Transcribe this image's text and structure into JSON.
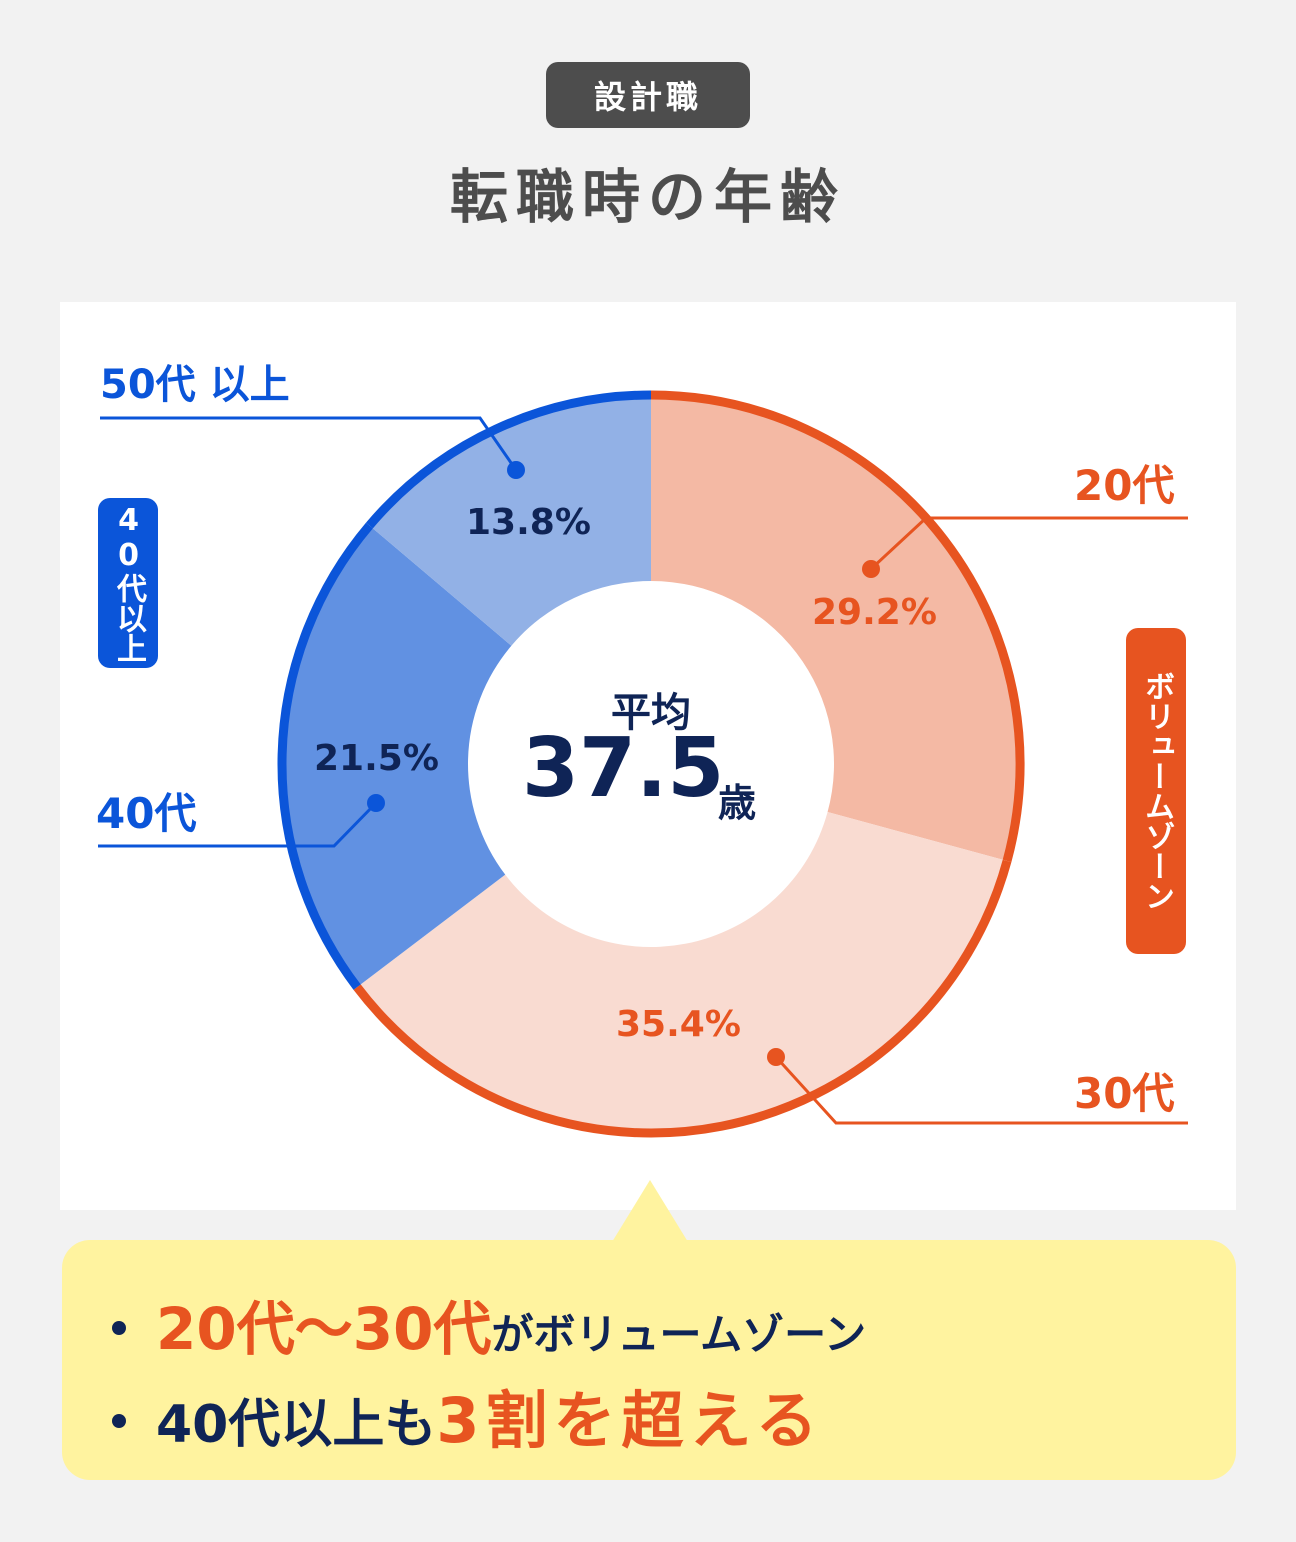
{
  "header": {
    "category": "設計職",
    "title": "転職時の年齢"
  },
  "center": {
    "label": "平均",
    "value": "37.5",
    "unit": "歳"
  },
  "labels": {
    "age_20s": "20代",
    "age_30s": "30代",
    "age_40s": "40代",
    "age_50s_plus": "50代 以上",
    "pct_20s": "29.2%",
    "pct_30s": "35.4%",
    "pct_40s": "21.5%",
    "pct_50s_plus": "13.8%",
    "group_40_plus_badge": "40代以上",
    "volume_zone_badge": "ボリュームゾーン"
  },
  "callout": {
    "line1_highlight": "20代〜30代",
    "line1_rest": "がボリュームゾーン",
    "line2_lead": "40代以上も",
    "line2_highlight": "3割を超える"
  },
  "colors": {
    "orange_accent": "#e75420",
    "blue_accent": "#0b55d9",
    "navy_text": "#0f2456",
    "seg_20s": "#f4b9a4",
    "seg_30s": "#f9dbd1",
    "seg_40s": "#6191e2",
    "seg_50s_plus": "#92b1e6",
    "callout_bg": "#fff39f",
    "badge_bg": "#4d4d4d"
  },
  "chart_data": {
    "type": "pie",
    "variant": "donut",
    "title": "転職時の年齢",
    "subtitle": "設計職",
    "categories": [
      "20代",
      "30代",
      "40代",
      "50代以上"
    ],
    "values": [
      29.2,
      35.4,
      21.5,
      13.8
    ],
    "unit": "%",
    "start_angle": "12 o'clock, clockwise",
    "center_annotation": "平均 37.5歳",
    "groups": [
      {
        "name": "ボリュームゾーン",
        "members": [
          "20代",
          "30代"
        ],
        "color": "#e75420"
      },
      {
        "name": "40代以上",
        "members": [
          "40代",
          "50代以上"
        ],
        "color": "#0b55d9"
      }
    ],
    "legend": "none (direct labels)"
  }
}
